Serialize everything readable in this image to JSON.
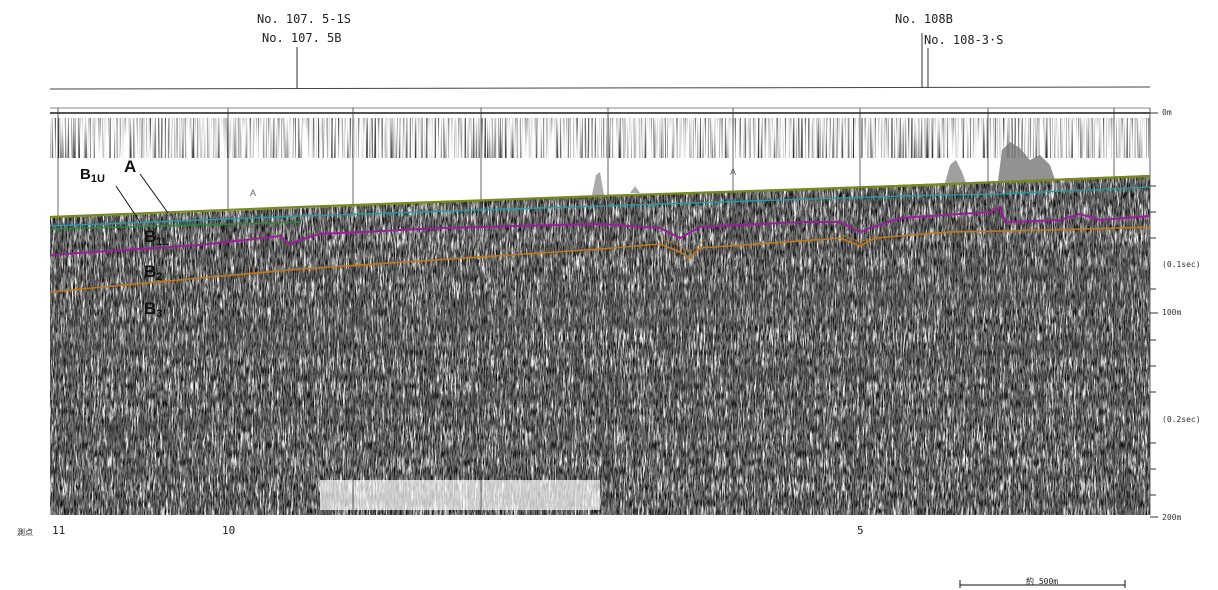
{
  "survey_lines": {
    "left_upper": "No. 107. 5-1S",
    "left_lower": "No. 107. 5B",
    "right_upper": "No. 108B",
    "right_lower": "No. 108-3·S"
  },
  "layers": {
    "A": "A",
    "B1U_main": "B",
    "B1U_sub": "1U",
    "B1L_main": "B",
    "B1L_sub": "1L",
    "B2_main": "B",
    "B2_sub": "2",
    "B3_main": "B",
    "B3_sub": "3",
    "inline_A": "A",
    "inline_B": "B"
  },
  "depth_scale": {
    "d0": "0m",
    "t01": "(0.1sec)",
    "d100": "100m",
    "t02": "(0.2sec)",
    "d200": "200m"
  },
  "stations": {
    "caption": "測点",
    "s11": "11",
    "s10": "10",
    "s5": "5"
  },
  "scale_bar": {
    "label": "約 500m"
  },
  "horizon_colors": {
    "A": "#7a8a1a",
    "B1U": "#20a0a8",
    "B1L": "#9b1f9b",
    "B2": "#c07a1a"
  }
}
